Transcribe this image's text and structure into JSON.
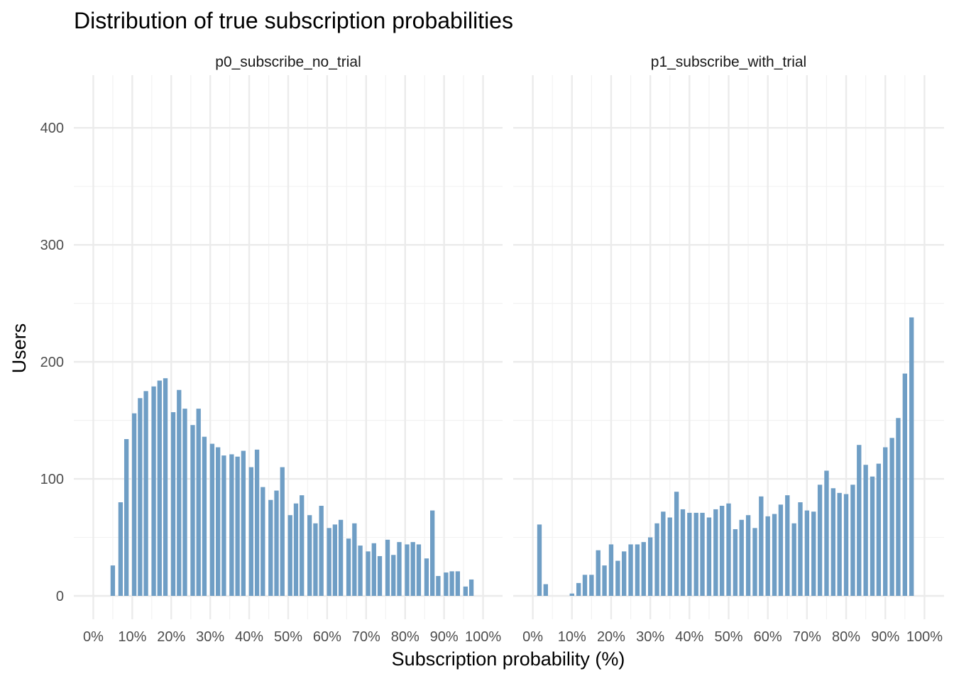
{
  "chart_data": {
    "type": "bar",
    "title": "Distribution of true subscription probabilities",
    "xlabel": "Subscription probability (%)",
    "ylabel": "Users",
    "xlim": [
      -0.05,
      1.05
    ],
    "ylim": [
      -20,
      445
    ],
    "x_ticks": [
      0,
      0.1,
      0.2,
      0.3,
      0.4,
      0.5,
      0.6,
      0.7,
      0.8,
      0.9,
      1.0
    ],
    "x_tick_labels": [
      "0%",
      "10%",
      "20%",
      "30%",
      "40%",
      "50%",
      "60%",
      "70%",
      "80%",
      "90%",
      "100%"
    ],
    "y_ticks": [
      0,
      100,
      200,
      300,
      400
    ],
    "y_tick_labels": [
      "0",
      "100",
      "200",
      "300",
      "400"
    ],
    "grid": true,
    "bar_color": "#6f9ec5",
    "panels": [
      {
        "name": "p0_subscribe_no_trial",
        "bars": [
          [
            0.05,
            26
          ],
          [
            0.07,
            80
          ],
          [
            0.085,
            134
          ],
          [
            0.105,
            156
          ],
          [
            0.12,
            169
          ],
          [
            0.135,
            175
          ],
          [
            0.155,
            179
          ],
          [
            0.17,
            184
          ],
          [
            0.185,
            186
          ],
          [
            0.205,
            157
          ],
          [
            0.22,
            176
          ],
          [
            0.235,
            160
          ],
          [
            0.255,
            146
          ],
          [
            0.27,
            160
          ],
          [
            0.285,
            136
          ],
          [
            0.305,
            130
          ],
          [
            0.32,
            127
          ],
          [
            0.335,
            120
          ],
          [
            0.355,
            121
          ],
          [
            0.37,
            119
          ],
          [
            0.385,
            124
          ],
          [
            0.405,
            110
          ],
          [
            0.42,
            125
          ],
          [
            0.435,
            93
          ],
          [
            0.455,
            82
          ],
          [
            0.47,
            90
          ],
          [
            0.485,
            110
          ],
          [
            0.505,
            69
          ],
          [
            0.52,
            79
          ],
          [
            0.535,
            86
          ],
          [
            0.555,
            69
          ],
          [
            0.57,
            62
          ],
          [
            0.585,
            77
          ],
          [
            0.605,
            58
          ],
          [
            0.62,
            61
          ],
          [
            0.635,
            65
          ],
          [
            0.655,
            49
          ],
          [
            0.67,
            62
          ],
          [
            0.685,
            43
          ],
          [
            0.705,
            38
          ],
          [
            0.72,
            45
          ],
          [
            0.735,
            34
          ],
          [
            0.755,
            48
          ],
          [
            0.77,
            35
          ],
          [
            0.785,
            46
          ],
          [
            0.805,
            44
          ],
          [
            0.82,
            46
          ],
          [
            0.835,
            44
          ],
          [
            0.855,
            32
          ],
          [
            0.87,
            73
          ],
          [
            0.885,
            17
          ],
          [
            0.905,
            20
          ],
          [
            0.92,
            21
          ],
          [
            0.935,
            21
          ],
          [
            0.955,
            8
          ],
          [
            0.97,
            14
          ]
        ]
      },
      {
        "name": "p1_subscribe_with_trial",
        "bars": [
          [
            0.017,
            61
          ],
          [
            0.033,
            10
          ],
          [
            0.1,
            2
          ],
          [
            0.117,
            11
          ],
          [
            0.133,
            18
          ],
          [
            0.15,
            18
          ],
          [
            0.167,
            39
          ],
          [
            0.183,
            26
          ],
          [
            0.2,
            44
          ],
          [
            0.217,
            30
          ],
          [
            0.233,
            38
          ],
          [
            0.25,
            44
          ],
          [
            0.267,
            44
          ],
          [
            0.283,
            46
          ],
          [
            0.3,
            50
          ],
          [
            0.317,
            62
          ],
          [
            0.333,
            72
          ],
          [
            0.35,
            67
          ],
          [
            0.367,
            89
          ],
          [
            0.383,
            74
          ],
          [
            0.4,
            71
          ],
          [
            0.417,
            71
          ],
          [
            0.433,
            71
          ],
          [
            0.45,
            67
          ],
          [
            0.467,
            74
          ],
          [
            0.483,
            77
          ],
          [
            0.5,
            79
          ],
          [
            0.517,
            57
          ],
          [
            0.533,
            65
          ],
          [
            0.55,
            69
          ],
          [
            0.567,
            58
          ],
          [
            0.583,
            85
          ],
          [
            0.6,
            68
          ],
          [
            0.617,
            70
          ],
          [
            0.633,
            78
          ],
          [
            0.65,
            86
          ],
          [
            0.667,
            62
          ],
          [
            0.683,
            80
          ],
          [
            0.7,
            73
          ],
          [
            0.717,
            72
          ],
          [
            0.733,
            95
          ],
          [
            0.75,
            107
          ],
          [
            0.767,
            92
          ],
          [
            0.783,
            88
          ],
          [
            0.8,
            87
          ],
          [
            0.817,
            95
          ],
          [
            0.833,
            129
          ],
          [
            0.85,
            112
          ],
          [
            0.867,
            102
          ],
          [
            0.883,
            113
          ],
          [
            0.9,
            127
          ],
          [
            0.917,
            135
          ],
          [
            0.933,
            152
          ],
          [
            0.95,
            190
          ],
          [
            0.967,
            238
          ]
        ]
      }
    ]
  }
}
